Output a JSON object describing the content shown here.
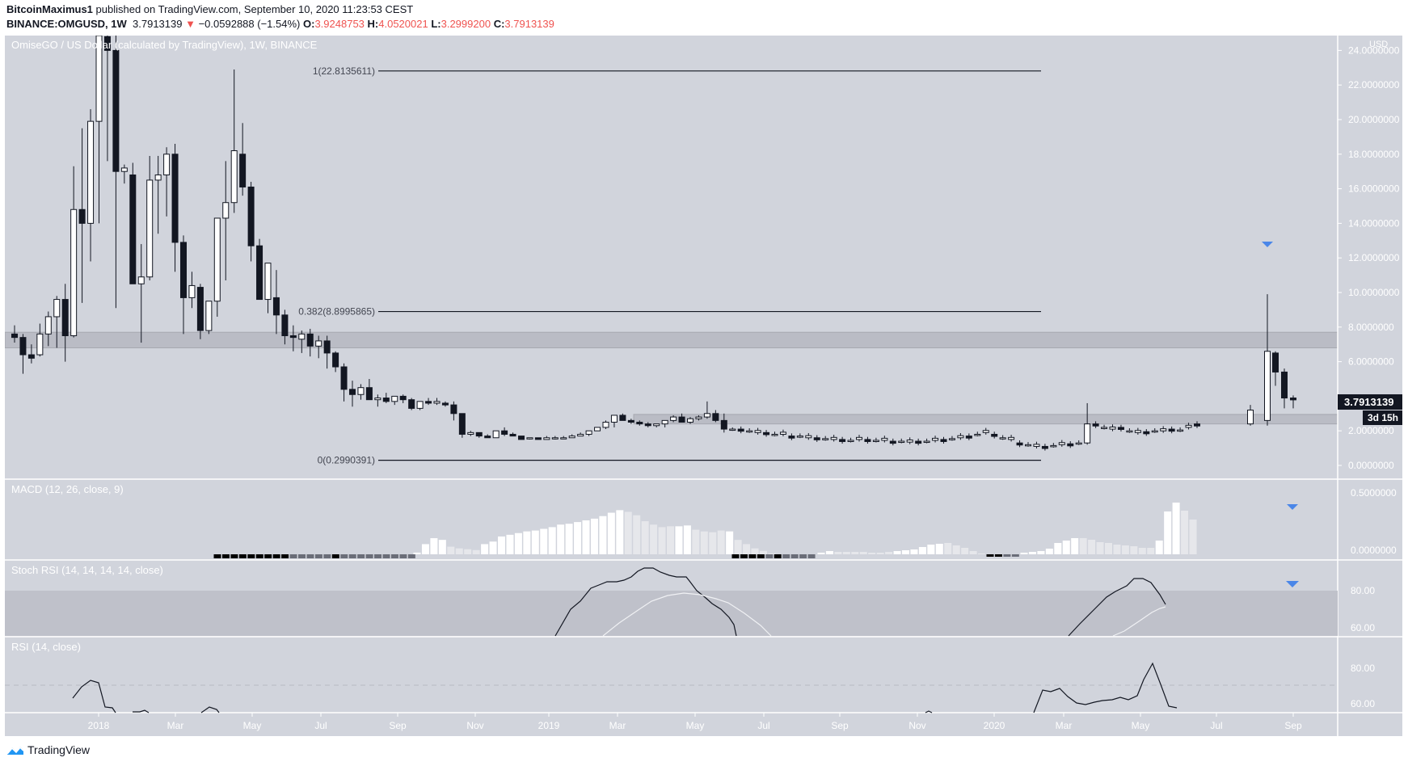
{
  "header": {
    "line1_author": "BitcoinMaximus1",
    "line1_rest": " published on TradingView.com, September 10, 2020 11:23:53 CEST",
    "symbol": "BINANCE:OMGUSD, 1W",
    "last": "3.7913139",
    "change": "−0.0592888 (−1.54%)",
    "o_label": "O:",
    "o": "3.9248753",
    "h_label": "H:",
    "h": "4.0520021",
    "l_label": "L:",
    "l": "3.2999200",
    "c_label": "C:",
    "c": "3.7913139",
    "down_arrow": "▼"
  },
  "main_pane": {
    "title": "OmiseGO / US Dollar (calculated by TradingView), 1W, BINANCE",
    "currency": "USD",
    "price_ticks": [
      "24.0000000",
      "22.0000000",
      "20.0000000",
      "18.0000000",
      "16.0000000",
      "14.0000000",
      "12.0000000",
      "10.0000000",
      "8.0000000",
      "6.0000000",
      "2.0000000",
      "0.0000000"
    ],
    "last_price_label": "3.7913139",
    "countdown_label": "3d 15h",
    "fib_levels": [
      {
        "label": "1(22.8135611)",
        "price": 22.8135611
      },
      {
        "label": "0.382(8.8995865)",
        "price": 8.8995865
      },
      {
        "label": "0(0.2990391)",
        "price": 0.2990391
      }
    ]
  },
  "macd_pane": {
    "title": "MACD (12, 26, close, 9)",
    "ticks": [
      "0.5000000",
      "0.0000000"
    ]
  },
  "stoch_pane": {
    "title": "Stoch RSI (14, 14, 14, 14, close)",
    "ticks": [
      "80.00",
      "60.00"
    ]
  },
  "rsi_pane": {
    "title": "RSI (14, close)",
    "ticks": [
      "80.00",
      "60.00"
    ]
  },
  "time_axis": [
    "2018",
    "Mar",
    "May",
    "Jul",
    "Sep",
    "Nov",
    "2019",
    "Mar",
    "May",
    "Jul",
    "Sep",
    "Nov",
    "2020",
    "Mar",
    "May",
    "Jul",
    "Sep"
  ],
  "footer": {
    "brand": "TradingView"
  },
  "colors": {
    "pane_bg": "#d1d4dc",
    "bear": "#131722",
    "bull": "#ffffff",
    "zone": "#babcc5",
    "marker": "#4a86e8",
    "red": "#ef5350"
  },
  "chart_data": {
    "type": "candlestick",
    "title": "OmiseGO / US Dollar, 1W, BINANCE",
    "ylabel": "USD",
    "ylim": [
      0,
      24.5
    ],
    "x_ticks": [
      "2018",
      "Mar",
      "May",
      "Jul",
      "Sep",
      "Nov",
      "2019",
      "Mar",
      "May",
      "Jul",
      "Sep",
      "Nov",
      "2020",
      "Mar",
      "May",
      "Jul",
      "Sep"
    ],
    "horizontal_zones": [
      {
        "from": 6.8,
        "to": 7.7
      },
      {
        "from": 2.4,
        "to": 2.95
      }
    ],
    "fibonacci": [
      {
        "level": 1,
        "price": 22.8135611
      },
      {
        "level": 0.382,
        "price": 8.8995865
      },
      {
        "level": 0,
        "price": 0.2990391
      }
    ],
    "ohlc_approx": [
      [
        7.6,
        8.1,
        7.1,
        7.4
      ],
      [
        7.4,
        7.6,
        5.3,
        6.4
      ],
      [
        6.4,
        7.0,
        5.9,
        6.2
      ],
      [
        6.4,
        8.2,
        6.3,
        7.6
      ],
      [
        7.6,
        8.9,
        6.9,
        8.6
      ],
      [
        8.6,
        9.8,
        6.8,
        9.6
      ],
      [
        9.6,
        10.5,
        6.0,
        7.5
      ],
      [
        7.5,
        17.3,
        7.4,
        14.8
      ],
      [
        14.8,
        19.5,
        9.4,
        14.0
      ],
      [
        14.0,
        20.6,
        11.8,
        19.9
      ],
      [
        19.9,
        25,
        14.0,
        25
      ],
      [
        24.8,
        25,
        17.6,
        24.0
      ],
      [
        24.0,
        25,
        9.1,
        17.0
      ],
      [
        17.0,
        17.4,
        16.3,
        17.2
      ],
      [
        16.8,
        17.5,
        12.1,
        10.5
      ],
      [
        10.5,
        12.8,
        7.1,
        10.9
      ],
      [
        10.9,
        17.9,
        10.7,
        16.5
      ],
      [
        16.5,
        17.9,
        13.4,
        16.8
      ],
      [
        16.8,
        18.4,
        14.4,
        18.0
      ],
      [
        18.0,
        18.6,
        11.2,
        12.9
      ],
      [
        12.9,
        13.3,
        7.6,
        9.7
      ],
      [
        9.7,
        11.2,
        9.1,
        10.4
      ],
      [
        10.3,
        10.5,
        7.3,
        7.8
      ],
      [
        7.8,
        9.5,
        7.6,
        9.5
      ],
      [
        9.5,
        14.3,
        8.6,
        14.3
      ],
      [
        14.3,
        17.6,
        10.7,
        15.2
      ],
      [
        15.2,
        22.9,
        14.6,
        18.2
      ],
      [
        18.0,
        19.8,
        15.6,
        16.1
      ],
      [
        16.1,
        16.4,
        11.8,
        12.7
      ],
      [
        12.7,
        13.1,
        10.1,
        9.6
      ],
      [
        9.6,
        11.7,
        8.8,
        11.7
      ],
      [
        9.7,
        11.3,
        7.6,
        8.7
      ],
      [
        8.7,
        9.0,
        7.0,
        7.5
      ],
      [
        7.5,
        8.1,
        6.6,
        7.4
      ],
      [
        7.3,
        7.8,
        6.5,
        7.6
      ],
      [
        7.6,
        7.9,
        6.3,
        6.9
      ],
      [
        6.9,
        7.5,
        6.2,
        7.2
      ],
      [
        7.2,
        7.5,
        5.6,
        6.5
      ],
      [
        6.5,
        6.6,
        5.4,
        5.7
      ],
      [
        5.7,
        5.9,
        3.7,
        4.4
      ],
      [
        4.4,
        4.9,
        3.4,
        4.1
      ],
      [
        4.1,
        4.7,
        3.8,
        4.5
      ],
      [
        4.5,
        5.0,
        3.8,
        3.8
      ],
      [
        3.8,
        4.1,
        3.4,
        3.9
      ],
      [
        3.9,
        4.2,
        3.6,
        3.7
      ],
      [
        3.7,
        4.0,
        3.5,
        4.0
      ],
      [
        4.0,
        4.1,
        3.6,
        3.8
      ],
      [
        3.8,
        3.9,
        3.2,
        3.3
      ],
      [
        3.3,
        3.7,
        3.2,
        3.7
      ],
      [
        3.7,
        3.9,
        3.5,
        3.6
      ],
      [
        3.6,
        3.9,
        3.5,
        3.7
      ],
      [
        3.6,
        3.7,
        3.4,
        3.5
      ],
      [
        3.5,
        3.7,
        2.6,
        3.0
      ],
      [
        3.0,
        3.0,
        1.6,
        1.8
      ],
      [
        1.8,
        2.0,
        1.7,
        1.9
      ],
      [
        1.9,
        1.9,
        1.6,
        1.7
      ],
      [
        1.7,
        1.8,
        1.6,
        1.6
      ],
      [
        1.6,
        2.0,
        1.6,
        2.0
      ],
      [
        2.0,
        2.2,
        1.7,
        1.8
      ],
      [
        1.8,
        1.9,
        1.7,
        1.7
      ],
      [
        1.7,
        1.7,
        1.5,
        1.5
      ],
      [
        1.6,
        1.6,
        1.5,
        1.6
      ],
      [
        1.6,
        1.6,
        1.5,
        1.5
      ],
      [
        1.5,
        1.7,
        1.5,
        1.6
      ],
      [
        1.6,
        1.7,
        1.5,
        1.6
      ],
      [
        1.6,
        1.7,
        1.6,
        1.6
      ],
      [
        1.6,
        1.8,
        1.6,
        1.7
      ],
      [
        1.7,
        1.9,
        1.7,
        1.8
      ],
      [
        1.8,
        2.0,
        1.7,
        2.0
      ],
      [
        2.0,
        2.2,
        2.0,
        2.2
      ],
      [
        2.2,
        2.6,
        2.1,
        2.5
      ],
      [
        2.5,
        2.8,
        2.2,
        2.9
      ],
      [
        2.9,
        3.0,
        2.6,
        2.6
      ],
      [
        2.6,
        2.7,
        2.4,
        2.5
      ],
      [
        2.5,
        2.6,
        2.3,
        2.4
      ],
      [
        2.4,
        2.5,
        2.2,
        2.3
      ],
      [
        2.3,
        2.4,
        2.2,
        2.4
      ],
      [
        2.4,
        2.6,
        2.2,
        2.6
      ],
      [
        2.6,
        2.9,
        2.5,
        2.8
      ],
      [
        2.8,
        3.0,
        2.5,
        2.5
      ],
      [
        2.5,
        2.8,
        2.4,
        2.7
      ],
      [
        2.7,
        2.9,
        2.6,
        2.8
      ],
      [
        2.8,
        3.7,
        2.7,
        3.0
      ],
      [
        3.0,
        3.2,
        2.5,
        2.6
      ],
      [
        2.6,
        3.0,
        1.9,
        2.1
      ],
      [
        2.1,
        2.2,
        2.0,
        2.1
      ]
    ]
  }
}
